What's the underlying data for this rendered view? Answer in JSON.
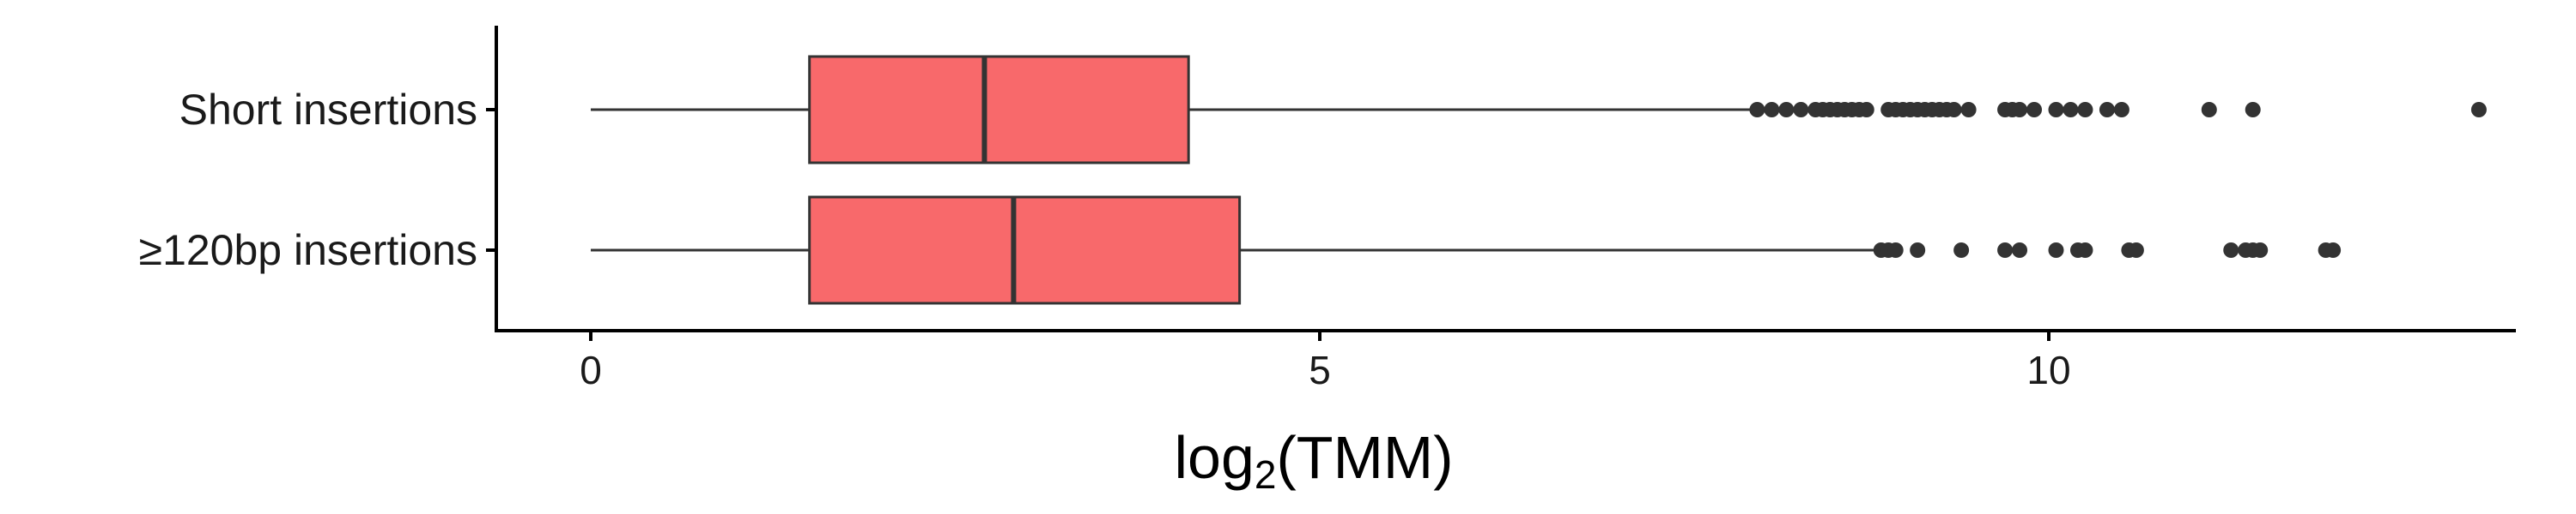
{
  "chart_data": {
    "type": "boxplot",
    "orientation": "horizontal",
    "title": "",
    "xlabel_parts": {
      "base": "log",
      "subscript": "2",
      "arg": "(TMM)"
    },
    "ylabel": "",
    "xlim": [
      -0.65,
      13.45
    ],
    "x_ticks": [
      0,
      5,
      10
    ],
    "x_tick_labels": [
      "0",
      "5",
      "10"
    ],
    "grid": false,
    "legend": "none",
    "fill_color": "#F8696B",
    "line_color": "#333333",
    "categories": [
      "Short insertions",
      "≥120bp insertions"
    ],
    "series": [
      {
        "category": "Short insertions",
        "whisker_low": 0.0,
        "q1": 1.5,
        "median": 2.7,
        "q3": 4.1,
        "whisker_high": 7.95,
        "outliers": [
          8.0,
          8.1,
          8.2,
          8.3,
          8.4,
          8.45,
          8.5,
          8.55,
          8.6,
          8.65,
          8.7,
          8.75,
          8.9,
          8.95,
          9.0,
          9.05,
          9.1,
          9.15,
          9.2,
          9.25,
          9.3,
          9.35,
          9.45,
          9.7,
          9.75,
          9.8,
          9.9,
          10.05,
          10.15,
          10.25,
          10.4,
          10.5,
          11.1,
          11.4,
          12.95
        ]
      },
      {
        "category": "≥120bp insertions",
        "whisker_low": 0.0,
        "q1": 1.5,
        "median": 2.9,
        "q3": 4.45,
        "whisker_high": 8.8,
        "outliers": [
          8.85,
          8.9,
          8.95,
          9.1,
          9.4,
          9.7,
          9.8,
          10.05,
          10.2,
          10.25,
          10.55,
          10.6,
          11.25,
          11.35,
          11.4,
          11.45,
          11.9,
          11.95
        ]
      }
    ]
  }
}
